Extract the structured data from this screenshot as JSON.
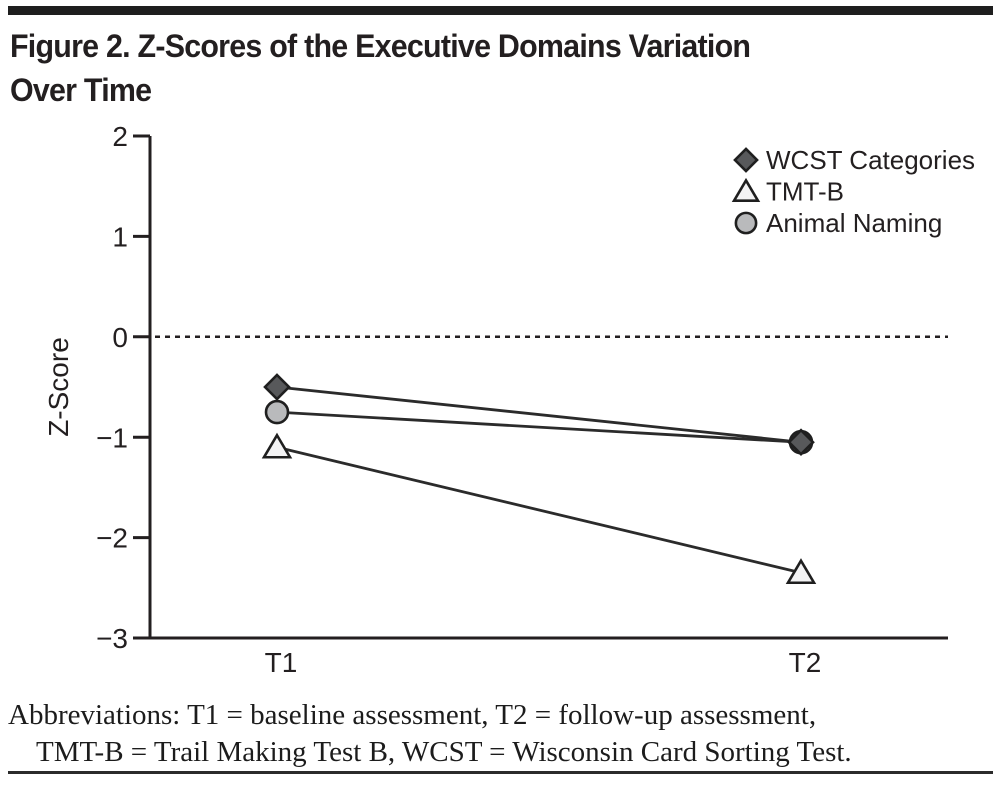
{
  "page": {
    "title_line1": "Figure 2. Z-Scores of the Executive Domains Variation",
    "title_line2": "Over Time",
    "footnote_line1": "Abbreviations: T1 = baseline assessment, T2 = follow-up assessment,",
    "footnote_line2": "TMT-B = Trail Making Test B, WCST = Wisconsin Card Sorting Test."
  },
  "chart_data": {
    "type": "line",
    "title": "",
    "xlabel": "",
    "ylabel": "Z-Score",
    "categories": [
      "T1",
      "T2"
    ],
    "ylim": [
      -3,
      2
    ],
    "yticks": [
      2,
      1,
      0,
      -1,
      -2,
      -3
    ],
    "grid": false,
    "reference_line": {
      "y": 0,
      "style": "dashed"
    },
    "legend_position": "top-right",
    "series": [
      {
        "name": "WCST Categories",
        "marker": "diamond",
        "marker_fill": "#58595b",
        "values": [
          -0.5,
          -1.05
        ]
      },
      {
        "name": "TMT-B",
        "marker": "triangle",
        "marker_fill": "#f3f3f4",
        "values": [
          -1.1,
          -2.35
        ]
      },
      {
        "name": "Animal Naming",
        "marker": "circle",
        "marker_fill": "#b9babc",
        "values": [
          -0.75,
          -1.05
        ]
      }
    ],
    "colors": {
      "line": "#2b2b2b",
      "axis": "#231f20",
      "marker_stroke": "#1f1f1f",
      "ink": "#231f20"
    }
  }
}
